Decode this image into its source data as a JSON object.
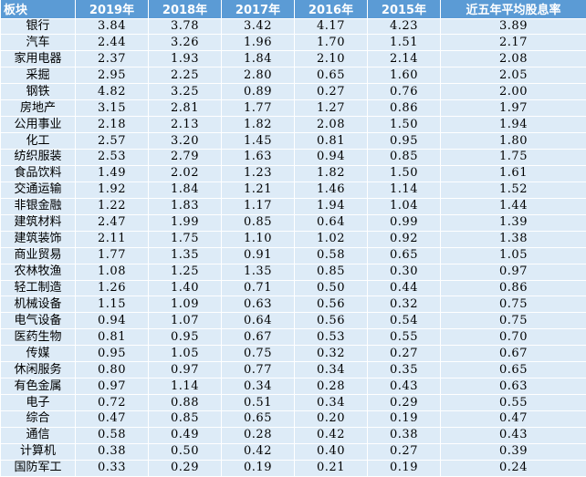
{
  "header": [
    "板块",
    "2019年",
    "2018年",
    "2017年",
    "2016年",
    "2015年",
    "近五年平均股息率"
  ],
  "rows": [
    [
      "银行",
      "3.84",
      "3.78",
      "3.42",
      "4.17",
      "4.23",
      "3.89"
    ],
    [
      "汽车",
      "2.44",
      "3.26",
      "1.96",
      "1.70",
      "1.51",
      "2.17"
    ],
    [
      "家用电器",
      "2.37",
      "1.93",
      "1.84",
      "2.10",
      "2.14",
      "2.08"
    ],
    [
      "采掘",
      "2.95",
      "2.25",
      "2.80",
      "0.65",
      "1.60",
      "2.05"
    ],
    [
      "钢铁",
      "4.82",
      "3.25",
      "0.89",
      "0.27",
      "0.76",
      "2.00"
    ],
    [
      "房地产",
      "3.15",
      "2.81",
      "1.77",
      "1.27",
      "0.86",
      "1.97"
    ],
    [
      "公用事业",
      "2.18",
      "2.13",
      "1.82",
      "2.08",
      "1.50",
      "1.94"
    ],
    [
      "化工",
      "2.57",
      "3.20",
      "1.45",
      "0.81",
      "0.95",
      "1.80"
    ],
    [
      "纺织服装",
      "2.53",
      "2.79",
      "1.63",
      "0.94",
      "0.85",
      "1.75"
    ],
    [
      "食品饮料",
      "1.49",
      "2.02",
      "1.23",
      "1.82",
      "1.50",
      "1.61"
    ],
    [
      "交通运输",
      "1.92",
      "1.84",
      "1.21",
      "1.46",
      "1.14",
      "1.52"
    ],
    [
      "非银金融",
      "1.22",
      "1.83",
      "1.17",
      "1.94",
      "1.04",
      "1.44"
    ],
    [
      "建筑材料",
      "2.47",
      "1.99",
      "0.85",
      "0.64",
      "0.99",
      "1.39"
    ],
    [
      "建筑装饰",
      "2.11",
      "1.75",
      "1.10",
      "1.02",
      "0.92",
      "1.38"
    ],
    [
      "商业贸易",
      "1.77",
      "1.35",
      "0.91",
      "0.58",
      "0.65",
      "1.05"
    ],
    [
      "农林牧渔",
      "1.08",
      "1.25",
      "1.35",
      "0.85",
      "0.30",
      "0.97"
    ],
    [
      "轻工制造",
      "1.26",
      "1.40",
      "0.71",
      "0.50",
      "0.44",
      "0.86"
    ],
    [
      "机械设备",
      "1.15",
      "1.09",
      "0.63",
      "0.56",
      "0.32",
      "0.75"
    ],
    [
      "电气设备",
      "0.94",
      "1.07",
      "0.64",
      "0.56",
      "0.54",
      "0.75"
    ],
    [
      "医药生物",
      "0.81",
      "0.95",
      "0.67",
      "0.53",
      "0.55",
      "0.70"
    ],
    [
      "传媒",
      "0.95",
      "1.05",
      "0.75",
      "0.32",
      "0.27",
      "0.67"
    ],
    [
      "休闲服务",
      "0.80",
      "0.97",
      "0.77",
      "0.34",
      "0.35",
      "0.65"
    ],
    [
      "有色金属",
      "0.97",
      "1.14",
      "0.34",
      "0.28",
      "0.43",
      "0.63"
    ],
    [
      "电子",
      "0.72",
      "0.88",
      "0.51",
      "0.34",
      "0.29",
      "0.55"
    ],
    [
      "综合",
      "0.47",
      "0.85",
      "0.65",
      "0.20",
      "0.19",
      "0.47"
    ],
    [
      "通信",
      "0.58",
      "0.49",
      "0.28",
      "0.42",
      "0.38",
      "0.43"
    ],
    [
      "计算机",
      "0.38",
      "0.50",
      "0.42",
      "0.40",
      "0.27",
      "0.39"
    ],
    [
      "国防军工",
      "0.33",
      "0.29",
      "0.19",
      "0.21",
      "0.19",
      "0.24"
    ]
  ],
  "colors": {
    "header_bg": "#5b9bd5",
    "header_text": "#ffffff",
    "row_bg": "#ddebf7",
    "grid": "#ffffff"
  }
}
